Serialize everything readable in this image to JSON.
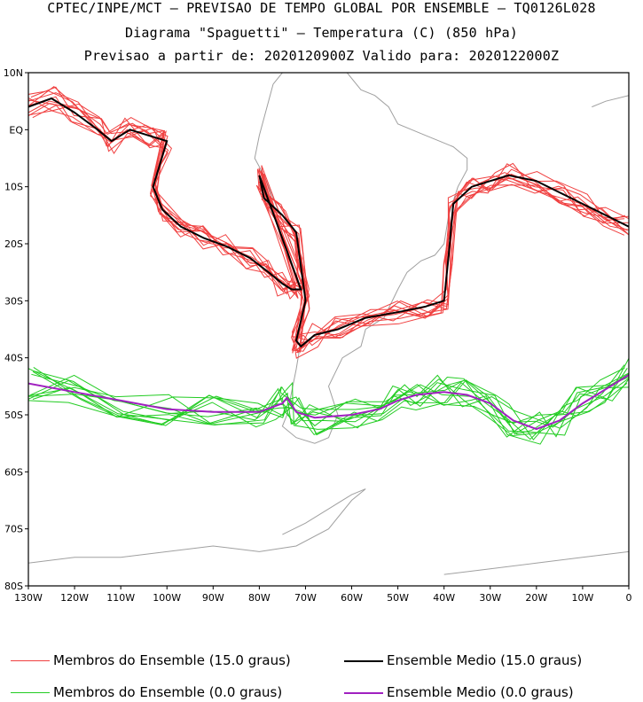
{
  "header": {
    "line1": "CPTEC/INPE/MCT — PREVISAO DE TEMPO GLOBAL POR ENSEMBLE — TQ0126L028",
    "line2": "Diagrama \"Spaguetti\" — Temperatura (C) (850 hPa)",
    "line3": "Previsao a partir de: 2020120900Z  Valido para: 2020122000Z"
  },
  "colors": {
    "member_15": "#f04040",
    "mean_15": "#000000",
    "member_0": "#22cc22",
    "mean_0": "#a020c0",
    "coast": "#a0a0a0"
  },
  "chart_data": {
    "type": "line",
    "title": "Diagrama \"Spaguetti\" — Temperatura (C) (850 hPa)",
    "xlim": [
      -130,
      0
    ],
    "ylim": [
      -80,
      10
    ],
    "x_ticks": [
      -130,
      -120,
      -110,
      -100,
      -90,
      -80,
      -70,
      -60,
      -50,
      -40,
      -30,
      -20,
      -10,
      0
    ],
    "x_tick_labels": [
      "130W",
      "120W",
      "110W",
      "100W",
      "90W",
      "80W",
      "70W",
      "60W",
      "50W",
      "40W",
      "30W",
      "20W",
      "10W",
      "0"
    ],
    "y_ticks": [
      10,
      0,
      -10,
      -20,
      -30,
      -40,
      -50,
      -60,
      -70,
      -80
    ],
    "y_tick_labels": [
      "10N",
      "EQ",
      "10S",
      "20S",
      "30S",
      "40S",
      "50S",
      "60S",
      "70S",
      "80S"
    ],
    "series": [
      {
        "name": "Ensemble Medio (15.0 graus)",
        "lon": [
          -130,
          -125,
          -120,
          -115,
          -112,
          -108,
          -104,
          -100,
          -103,
          -101,
          -97,
          -92,
          -87,
          -82,
          -78,
          -75,
          -73,
          -71,
          -80,
          -79,
          -75,
          -72,
          -71,
          -70,
          -72,
          -71,
          -68,
          -63,
          -57,
          -50,
          -44,
          -40,
          -39,
          -38,
          -34,
          -30,
          -26,
          -20,
          -15,
          -10,
          -5,
          0
        ],
        "lat": [
          4,
          5.5,
          3,
          0,
          -2,
          0,
          -1,
          -2,
          -10,
          -14,
          -17,
          -19,
          -20.5,
          -22.5,
          -25,
          -27,
          -28,
          -28,
          -8,
          -12,
          -15,
          -18,
          -24,
          -30,
          -37,
          -38,
          -36,
          -35,
          -33,
          -32,
          -31,
          -30,
          -22,
          -13,
          -10,
          -9,
          -8,
          -9,
          -11,
          -13,
          -15,
          -17
        ]
      },
      {
        "name": "Ensemble Medio (0.0 graus)",
        "lon": [
          -130,
          -120,
          -110,
          -100,
          -90,
          -80,
          -75,
          -74,
          -72,
          -68,
          -60,
          -54,
          -50,
          -46,
          -40,
          -35,
          -30,
          -25,
          -20,
          -15,
          -10,
          -5,
          0
        ],
        "lat": [
          -44.5,
          -46,
          -47.5,
          -49,
          -49.5,
          -49.5,
          -48,
          -47,
          -49.5,
          -50.5,
          -50,
          -49,
          -47.5,
          -46.5,
          -46,
          -46.5,
          -48,
          -51,
          -52.5,
          -51,
          -48,
          -45.5,
          -43
        ]
      }
    ],
    "member_counts": {
      "members_15": 11,
      "members_0": 11
    },
    "legend": [
      {
        "label": "Membros do Ensemble (15.0 graus)",
        "color": "#f04040",
        "series": "members_15"
      },
      {
        "label": "Ensemble Medio (15.0 graus)",
        "color": "#000000",
        "series": "mean_15"
      },
      {
        "label": "Membros do Ensemble (0.0 graus)",
        "color": "#22cc22",
        "series": "members_0"
      },
      {
        "label": "Ensemble Medio (0.0 graus)",
        "color": "#a020c0",
        "series": "mean_0"
      }
    ]
  }
}
